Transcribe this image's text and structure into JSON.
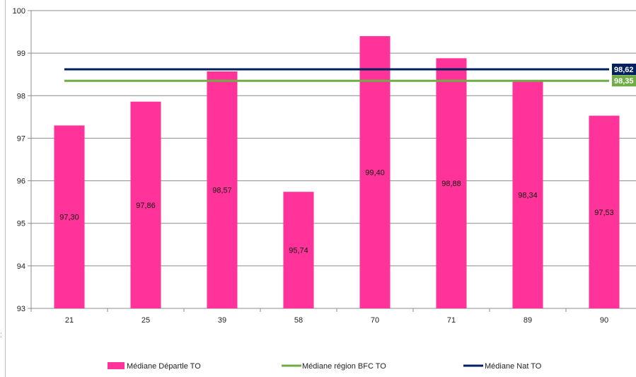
{
  "chart_data": {
    "type": "bar",
    "categories": [
      "21",
      "25",
      "39",
      "58",
      "70",
      "71",
      "89",
      "90"
    ],
    "series": [
      {
        "name": "Médiane Départle TO",
        "kind": "bar",
        "color": "#ff3399",
        "values": [
          97.3,
          97.86,
          98.57,
          95.74,
          99.4,
          98.88,
          98.34,
          97.53
        ],
        "labels": [
          "97,30",
          "97,86",
          "98,57",
          "95,74",
          "99,40",
          "98,88",
          "98,34",
          "97,53"
        ]
      },
      {
        "name": "Médiane région BFC TO",
        "kind": "line",
        "color": "#70ad47",
        "value": 98.35,
        "label": "98,35"
      },
      {
        "name": "Médiane Nat TO",
        "kind": "line",
        "color": "#002060",
        "value": 98.62,
        "label": "98,62"
      }
    ],
    "ylim": [
      93,
      100
    ],
    "yticks": [
      "93",
      "94",
      "95",
      "96",
      "97",
      "98",
      "99",
      "100"
    ],
    "grid": true,
    "legend_position": "bottom"
  }
}
